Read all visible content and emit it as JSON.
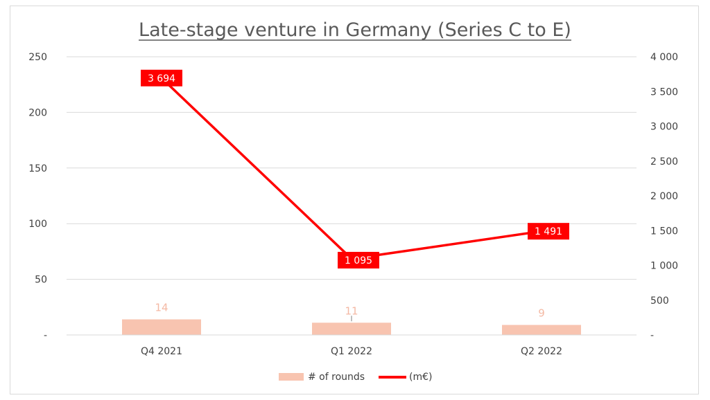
{
  "chart_data": {
    "type": "bar+line",
    "title": "Late-stage venture in Germany (Series C to E)",
    "categories": [
      "Q4 2021",
      "Q1 2022",
      "Q2 2022"
    ],
    "series": [
      {
        "name": "# of rounds",
        "type": "bar",
        "axis": "left",
        "values": [
          14,
          11,
          9
        ],
        "labels": [
          "14",
          "11",
          "9"
        ]
      },
      {
        "name": "(m€)",
        "type": "line",
        "axis": "right",
        "values": [
          3694,
          1095,
          1491
        ],
        "labels": [
          "3 694",
          "1 095",
          "1 491"
        ]
      }
    ],
    "y_left": {
      "ylim": [
        0,
        250
      ],
      "ticks": [
        0,
        50,
        100,
        150,
        200,
        250
      ],
      "tick_labels": [
        "-",
        "50",
        "100",
        "150",
        "200",
        "250"
      ]
    },
    "y_right": {
      "ylim": [
        0,
        4000
      ],
      "ticks": [
        0,
        500,
        1000,
        1500,
        2000,
        2500,
        3000,
        3500,
        4000
      ],
      "tick_labels": [
        "-",
        "500",
        "1 000",
        "1 500",
        "2 000",
        "2 500",
        "3 000",
        "3 500",
        "4 000"
      ]
    },
    "grid": true,
    "legend": "bottom",
    "colors": {
      "bar": "#f8c4b0",
      "bar_label": "#f4b9a4",
      "line": "#ff0000",
      "grid": "#d9d9d9"
    }
  }
}
